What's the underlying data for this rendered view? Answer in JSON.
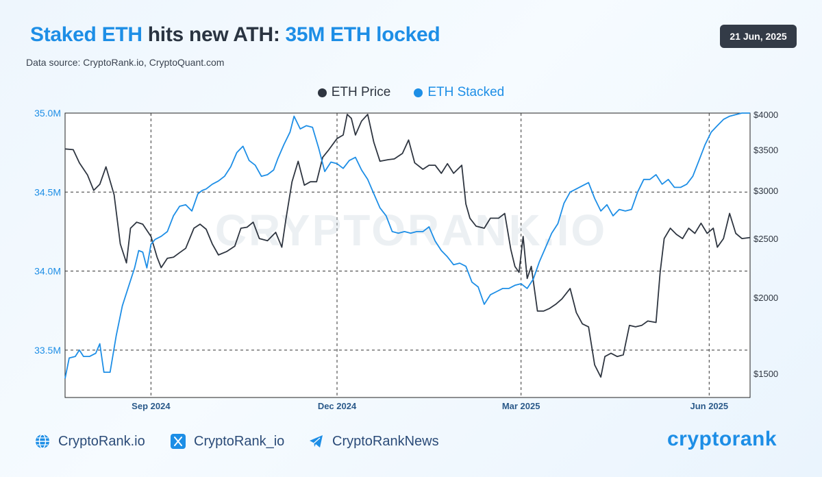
{
  "header": {
    "title_part1": "Staked ETH",
    "title_part2": " hits new ATH: ",
    "title_part3": "35M ETH locked",
    "source": "Data source: CryptoRank.io, CryptoQuant.com",
    "date": "21 Jun, 2025"
  },
  "legend": [
    {
      "label": "ETH Price",
      "color": "#2e3540"
    },
    {
      "label": "ETH Stacked",
      "color": "#1d8ee6"
    }
  ],
  "watermark": "CRYPTORANK.IO",
  "chart_data": {
    "type": "line",
    "title": "",
    "xlabel": "",
    "x_range": [
      "2024-07-21",
      "2025-06-21"
    ],
    "x_ticks": [
      {
        "date": "2024-09-01",
        "label": "Sep 2024"
      },
      {
        "date": "2024-12-01",
        "label": "Dec 2024"
      },
      {
        "date": "2025-03-01",
        "label": "Mar 2025"
      },
      {
        "date": "2025-06-01",
        "label": "Jun 2025"
      }
    ],
    "y_left": {
      "label": "ETH Stacked",
      "scale": "linear",
      "ylim": [
        33.2,
        35.0
      ],
      "ticks": [
        33.5,
        34.0,
        34.5,
        35.0
      ],
      "tick_labels": [
        "33.5M",
        "34.0M",
        "34.5M",
        "35.0M"
      ],
      "color": "#1d8ee6"
    },
    "y_right": {
      "label": "ETH Price",
      "scale": "log",
      "ylim": [
        1370,
        4020
      ],
      "ticks": [
        1500,
        2000,
        2500,
        3000,
        3500,
        4000
      ],
      "tick_labels": [
        "$1500",
        "$2000",
        "$2500",
        "$3000",
        "$3500",
        "$4000"
      ],
      "color": "#2e3540"
    },
    "grid": {
      "vertical": true,
      "horizontal": true,
      "style": "dashed"
    },
    "legend_position": "top-center",
    "series": [
      {
        "name": "ETH Price",
        "axis": "right",
        "color": "#2e3540",
        "points": [
          [
            "2024-07-21",
            3510
          ],
          [
            "2024-07-25",
            3500
          ],
          [
            "2024-07-28",
            3330
          ],
          [
            "2024-08-01",
            3180
          ],
          [
            "2024-08-04",
            3000
          ],
          [
            "2024-08-07",
            3070
          ],
          [
            "2024-08-10",
            3280
          ],
          [
            "2024-08-14",
            2950
          ],
          [
            "2024-08-17",
            2450
          ],
          [
            "2024-08-20",
            2280
          ],
          [
            "2024-08-22",
            2600
          ],
          [
            "2024-08-25",
            2660
          ],
          [
            "2024-08-28",
            2640
          ],
          [
            "2024-09-01",
            2520
          ],
          [
            "2024-09-04",
            2330
          ],
          [
            "2024-09-06",
            2240
          ],
          [
            "2024-09-09",
            2320
          ],
          [
            "2024-09-12",
            2330
          ],
          [
            "2024-09-15",
            2370
          ],
          [
            "2024-09-18",
            2410
          ],
          [
            "2024-09-22",
            2600
          ],
          [
            "2024-09-25",
            2640
          ],
          [
            "2024-09-28",
            2590
          ],
          [
            "2024-10-01",
            2450
          ],
          [
            "2024-10-04",
            2350
          ],
          [
            "2024-10-08",
            2380
          ],
          [
            "2024-10-12",
            2430
          ],
          [
            "2024-10-15",
            2600
          ],
          [
            "2024-10-18",
            2610
          ],
          [
            "2024-10-21",
            2660
          ],
          [
            "2024-10-24",
            2500
          ],
          [
            "2024-10-28",
            2480
          ],
          [
            "2024-11-01",
            2560
          ],
          [
            "2024-11-04",
            2420
          ],
          [
            "2024-11-06",
            2690
          ],
          [
            "2024-11-09",
            3100
          ],
          [
            "2024-11-12",
            3350
          ],
          [
            "2024-11-15",
            3060
          ],
          [
            "2024-11-18",
            3100
          ],
          [
            "2024-11-21",
            3100
          ],
          [
            "2024-11-24",
            3400
          ],
          [
            "2024-11-27",
            3500
          ],
          [
            "2024-12-01",
            3650
          ],
          [
            "2024-12-04",
            3700
          ],
          [
            "2024-12-06",
            4000
          ],
          [
            "2024-12-08",
            3940
          ],
          [
            "2024-12-10",
            3700
          ],
          [
            "2024-12-13",
            3900
          ],
          [
            "2024-12-16",
            4000
          ],
          [
            "2024-12-19",
            3600
          ],
          [
            "2024-12-22",
            3350
          ],
          [
            "2024-12-26",
            3370
          ],
          [
            "2024-12-29",
            3380
          ],
          [
            "2025-01-02",
            3450
          ],
          [
            "2025-01-05",
            3630
          ],
          [
            "2025-01-08",
            3330
          ],
          [
            "2025-01-12",
            3250
          ],
          [
            "2025-01-15",
            3300
          ],
          [
            "2025-01-18",
            3300
          ],
          [
            "2025-01-21",
            3200
          ],
          [
            "2025-01-24",
            3320
          ],
          [
            "2025-01-27",
            3200
          ],
          [
            "2025-01-31",
            3300
          ],
          [
            "2025-02-02",
            2850
          ],
          [
            "2025-02-04",
            2700
          ],
          [
            "2025-02-07",
            2620
          ],
          [
            "2025-02-11",
            2600
          ],
          [
            "2025-02-14",
            2700
          ],
          [
            "2025-02-18",
            2700
          ],
          [
            "2025-02-21",
            2750
          ],
          [
            "2025-02-24",
            2400
          ],
          [
            "2025-02-26",
            2250
          ],
          [
            "2025-02-28",
            2200
          ],
          [
            "2025-03-02",
            2520
          ],
          [
            "2025-03-04",
            2150
          ],
          [
            "2025-03-06",
            2250
          ],
          [
            "2025-03-09",
            1900
          ],
          [
            "2025-03-12",
            1900
          ],
          [
            "2025-03-15",
            1920
          ],
          [
            "2025-03-18",
            1950
          ],
          [
            "2025-03-21",
            1990
          ],
          [
            "2025-03-25",
            2070
          ],
          [
            "2025-03-28",
            1890
          ],
          [
            "2025-03-31",
            1810
          ],
          [
            "2025-04-03",
            1790
          ],
          [
            "2025-04-06",
            1550
          ],
          [
            "2025-04-09",
            1480
          ],
          [
            "2025-04-11",
            1600
          ],
          [
            "2025-04-14",
            1620
          ],
          [
            "2025-04-17",
            1600
          ],
          [
            "2025-04-20",
            1610
          ],
          [
            "2025-04-23",
            1800
          ],
          [
            "2025-04-26",
            1790
          ],
          [
            "2025-04-29",
            1800
          ],
          [
            "2025-05-02",
            1830
          ],
          [
            "2025-05-06",
            1820
          ],
          [
            "2025-05-08",
            2200
          ],
          [
            "2025-05-10",
            2500
          ],
          [
            "2025-05-13",
            2600
          ],
          [
            "2025-05-16",
            2540
          ],
          [
            "2025-05-19",
            2500
          ],
          [
            "2025-05-22",
            2600
          ],
          [
            "2025-05-25",
            2550
          ],
          [
            "2025-05-28",
            2650
          ],
          [
            "2025-05-31",
            2550
          ],
          [
            "2025-06-03",
            2600
          ],
          [
            "2025-06-05",
            2420
          ],
          [
            "2025-06-08",
            2500
          ],
          [
            "2025-06-11",
            2750
          ],
          [
            "2025-06-14",
            2550
          ],
          [
            "2025-06-17",
            2500
          ],
          [
            "2025-06-21",
            2510
          ]
        ]
      },
      {
        "name": "ETH Stacked",
        "axis": "left",
        "color": "#1d8ee6",
        "points": [
          [
            "2024-07-21",
            33.32
          ],
          [
            "2024-07-23",
            33.45
          ],
          [
            "2024-07-26",
            33.46
          ],
          [
            "2024-07-28",
            33.5
          ],
          [
            "2024-07-30",
            33.46
          ],
          [
            "2024-08-02",
            33.46
          ],
          [
            "2024-08-05",
            33.48
          ],
          [
            "2024-08-07",
            33.54
          ],
          [
            "2024-08-09",
            33.36
          ],
          [
            "2024-08-12",
            33.36
          ],
          [
            "2024-08-15",
            33.59
          ],
          [
            "2024-08-18",
            33.78
          ],
          [
            "2024-08-21",
            33.9
          ],
          [
            "2024-08-24",
            34.02
          ],
          [
            "2024-08-26",
            34.13
          ],
          [
            "2024-08-28",
            34.12
          ],
          [
            "2024-08-30",
            34.02
          ],
          [
            "2024-09-01",
            34.17
          ],
          [
            "2024-09-03",
            34.2
          ],
          [
            "2024-09-06",
            34.22
          ],
          [
            "2024-09-09",
            34.25
          ],
          [
            "2024-09-12",
            34.35
          ],
          [
            "2024-09-15",
            34.41
          ],
          [
            "2024-09-18",
            34.42
          ],
          [
            "2024-09-21",
            34.38
          ],
          [
            "2024-09-24",
            34.49
          ],
          [
            "2024-09-26",
            34.51
          ],
          [
            "2024-09-28",
            34.52
          ],
          [
            "2024-10-01",
            34.55
          ],
          [
            "2024-10-04",
            34.57
          ],
          [
            "2024-10-07",
            34.6
          ],
          [
            "2024-10-10",
            34.66
          ],
          [
            "2024-10-13",
            34.75
          ],
          [
            "2024-10-16",
            34.79
          ],
          [
            "2024-10-19",
            34.7
          ],
          [
            "2024-10-22",
            34.67
          ],
          [
            "2024-10-25",
            34.6
          ],
          [
            "2024-10-28",
            34.61
          ],
          [
            "2024-10-31",
            34.64
          ],
          [
            "2024-11-02",
            34.71
          ],
          [
            "2024-11-05",
            34.8
          ],
          [
            "2024-11-08",
            34.88
          ],
          [
            "2024-11-10",
            34.98
          ],
          [
            "2024-11-13",
            34.9
          ],
          [
            "2024-11-16",
            34.92
          ],
          [
            "2024-11-19",
            34.91
          ],
          [
            "2024-11-22",
            34.78
          ],
          [
            "2024-11-25",
            34.63
          ],
          [
            "2024-11-28",
            34.69
          ],
          [
            "2024-12-01",
            34.68
          ],
          [
            "2024-12-04",
            34.65
          ],
          [
            "2024-12-07",
            34.7
          ],
          [
            "2024-12-10",
            34.72
          ],
          [
            "2024-12-13",
            34.64
          ],
          [
            "2024-12-16",
            34.58
          ],
          [
            "2024-12-19",
            34.49
          ],
          [
            "2024-12-22",
            34.4
          ],
          [
            "2024-12-25",
            34.35
          ],
          [
            "2024-12-28",
            34.25
          ],
          [
            "2024-12-31",
            34.24
          ],
          [
            "2025-01-03",
            34.25
          ],
          [
            "2025-01-06",
            34.24
          ],
          [
            "2025-01-09",
            34.25
          ],
          [
            "2025-01-12",
            34.25
          ],
          [
            "2025-01-15",
            34.28
          ],
          [
            "2025-01-18",
            34.19
          ],
          [
            "2025-01-21",
            34.13
          ],
          [
            "2025-01-24",
            34.09
          ],
          [
            "2025-01-27",
            34.04
          ],
          [
            "2025-01-30",
            34.05
          ],
          [
            "2025-02-02",
            34.03
          ],
          [
            "2025-02-05",
            33.93
          ],
          [
            "2025-02-08",
            33.9
          ],
          [
            "2025-02-11",
            33.79
          ],
          [
            "2025-02-14",
            33.85
          ],
          [
            "2025-02-17",
            33.87
          ],
          [
            "2025-02-20",
            33.89
          ],
          [
            "2025-02-23",
            33.89
          ],
          [
            "2025-02-26",
            33.91
          ],
          [
            "2025-03-01",
            33.92
          ],
          [
            "2025-03-04",
            33.89
          ],
          [
            "2025-03-07",
            33.95
          ],
          [
            "2025-03-10",
            34.06
          ],
          [
            "2025-03-13",
            34.15
          ],
          [
            "2025-03-16",
            34.24
          ],
          [
            "2025-03-19",
            34.3
          ],
          [
            "2025-03-22",
            34.43
          ],
          [
            "2025-03-25",
            34.5
          ],
          [
            "2025-03-28",
            34.52
          ],
          [
            "2025-03-31",
            34.54
          ],
          [
            "2025-04-03",
            34.56
          ],
          [
            "2025-04-06",
            34.46
          ],
          [
            "2025-04-09",
            34.38
          ],
          [
            "2025-04-12",
            34.42
          ],
          [
            "2025-04-15",
            34.35
          ],
          [
            "2025-04-18",
            34.39
          ],
          [
            "2025-04-21",
            34.38
          ],
          [
            "2025-04-24",
            34.39
          ],
          [
            "2025-04-27",
            34.5
          ],
          [
            "2025-04-30",
            34.58
          ],
          [
            "2025-05-03",
            34.58
          ],
          [
            "2025-05-06",
            34.61
          ],
          [
            "2025-05-09",
            34.55
          ],
          [
            "2025-05-12",
            34.58
          ],
          [
            "2025-05-15",
            34.53
          ],
          [
            "2025-05-18",
            34.53
          ],
          [
            "2025-05-21",
            34.55
          ],
          [
            "2025-05-24",
            34.6
          ],
          [
            "2025-05-27",
            34.7
          ],
          [
            "2025-05-30",
            34.8
          ],
          [
            "2025-06-02",
            34.88
          ],
          [
            "2025-06-05",
            34.92
          ],
          [
            "2025-06-08",
            34.96
          ],
          [
            "2025-06-11",
            34.98
          ],
          [
            "2025-06-14",
            34.99
          ],
          [
            "2025-06-17",
            35.0
          ],
          [
            "2025-06-21",
            35.0
          ]
        ]
      }
    ]
  },
  "footer": {
    "website": "CryptoRank.io",
    "twitter": "CryptoRank_io",
    "telegram": "CryptoRankNews",
    "brand": "cryptorank"
  }
}
